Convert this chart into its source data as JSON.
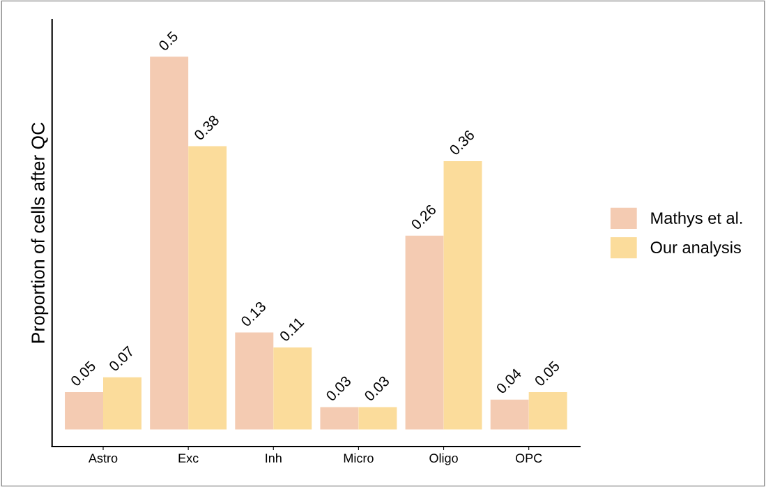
{
  "chart_data": {
    "type": "bar",
    "ylabel": "Proportion of cells after QC",
    "categories": [
      "Astro",
      "Exc",
      "Inh",
      "Micro",
      "Oligo",
      "OPC"
    ],
    "series": [
      {
        "name": "Mathys et al.",
        "color": "#f4cbb2",
        "values": [
          0.05,
          0.5,
          0.13,
          0.03,
          0.26,
          0.04
        ]
      },
      {
        "name": "Our analysis",
        "color": "#fbdc9b",
        "values": [
          0.07,
          0.38,
          0.11,
          0.03,
          0.36,
          0.05
        ]
      }
    ],
    "ylim": [
      -0.023,
      0.55
    ],
    "tick_labels": "x",
    "data_labels": true,
    "grid": false,
    "legend": "right"
  }
}
